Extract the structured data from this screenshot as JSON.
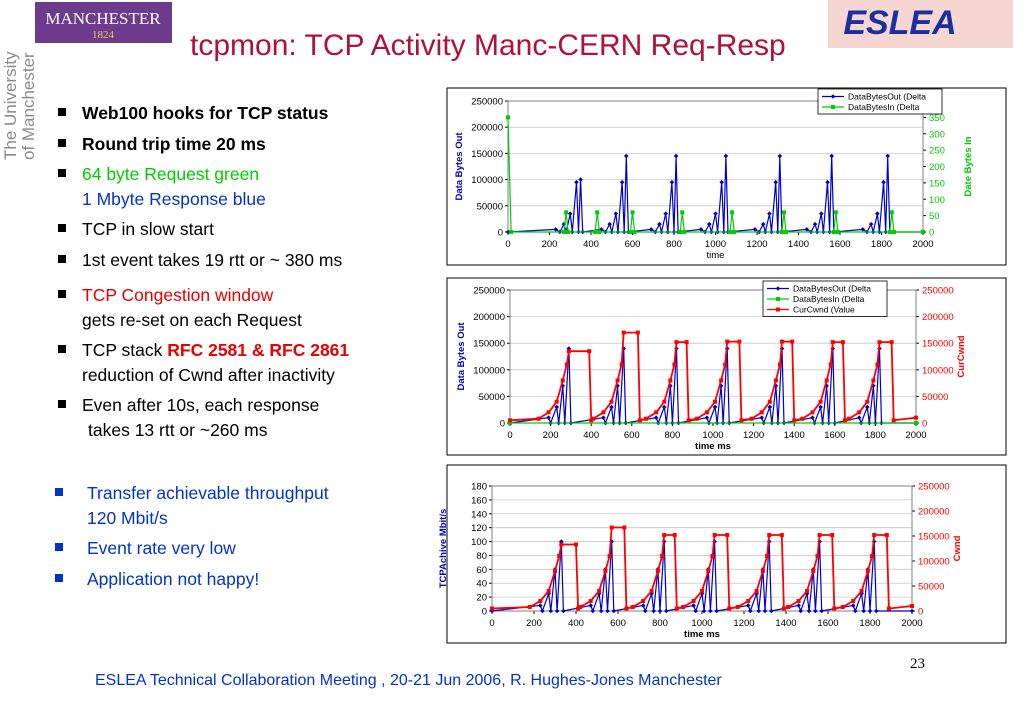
{
  "slide": {
    "logo": {
      "name": "MANCHESTER",
      "year": "1824"
    },
    "university": [
      "The University",
      "of Manchester"
    ],
    "eslea": "ESLEA",
    "title": "tcpmon: TCP Activity Manc-CERN Req-Resp",
    "bullets_top": [
      [
        [
          "Web100 hooks for TCP status"
        ]
      ],
      [
        [
          "Round trip time 20 ms"
        ]
      ],
      [
        [
          "64 byte Request green"
        ],
        [
          "1 Mbyte Response blue"
        ]
      ],
      [
        [
          "TCP in slow start"
        ]
      ],
      [
        [
          "1st event takes 19 rtt or ~ 380 ms"
        ]
      ],
      [
        [
          "TCP Congestion window"
        ],
        [
          "gets re-set on each Request"
        ]
      ],
      [
        [
          "TCP stack ",
          "RFC 2581 & RFC 2861"
        ],
        [
          "reduction of Cwnd after inactivity"
        ]
      ],
      [
        [
          "Even after 10s, each response"
        ],
        [
          "takes 13 rtt or ~260 ms"
        ]
      ]
    ],
    "bullets_bottom": [
      [
        [
          "Transfer achievable throughput"
        ],
        [
          "120 Mbit/s"
        ]
      ],
      [
        [
          "Event rate very low"
        ]
      ],
      [
        [
          "Application not happy!"
        ]
      ]
    ],
    "page_number": "23",
    "footer": "ESLEA Technical Collaboration Meeting , 20-21 Jun 2006,  R. Hughes-Jones  Manchester"
  },
  "chart_data": [
    {
      "type": "line",
      "x_label": "time",
      "y_label": "Data Bytes Out",
      "y2_label": "Date Bytes In",
      "grid": true,
      "legend": "upper right",
      "xlim": [
        0,
        2000
      ],
      "xticks": [
        0,
        200,
        400,
        600,
        800,
        1000,
        1200,
        1400,
        1600,
        1800,
        2000
      ],
      "ylim": [
        0,
        250000
      ],
      "yticks": [
        0,
        50000,
        100000,
        150000,
        200000,
        250000
      ],
      "y2lim": [
        0,
        400
      ],
      "y2ticks": [
        0,
        50,
        100,
        150,
        200,
        250,
        300,
        350
      ],
      "series": [
        {
          "name": "DataBytesOut (Delta",
          "color": "#0000cc",
          "marker": "diamond",
          "x": [
            0,
            230,
            250,
            270,
            280,
            300,
            310,
            330,
            340,
            350,
            360,
            450,
            470,
            490,
            500,
            520,
            530,
            550,
            560,
            570,
            580,
            690,
            710,
            730,
            740,
            760,
            770,
            790,
            800,
            810,
            820,
            930,
            950,
            970,
            980,
            1000,
            1010,
            1030,
            1040,
            1050,
            1060,
            1190,
            1210,
            1230,
            1240,
            1260,
            1270,
            1290,
            1300,
            1310,
            1320,
            1440,
            1460,
            1480,
            1490,
            1510,
            1520,
            1540,
            1550,
            1560,
            1570,
            1710,
            1730,
            1750,
            1760,
            1780,
            1790,
            1810,
            1820,
            1830,
            1840,
            2000
          ],
          "values": [
            0,
            5000,
            0,
            15000,
            0,
            35000,
            0,
            95000,
            0,
            100000,
            0,
            5000,
            0,
            15000,
            0,
            35000,
            0,
            95000,
            0,
            145000,
            0,
            5000,
            0,
            15000,
            0,
            35000,
            0,
            95000,
            0,
            145000,
            0,
            5000,
            0,
            15000,
            0,
            35000,
            0,
            95000,
            0,
            145000,
            0,
            5000,
            0,
            15000,
            0,
            35000,
            0,
            95000,
            0,
            145000,
            0,
            5000,
            0,
            15000,
            0,
            35000,
            0,
            95000,
            0,
            145000,
            0,
            5000,
            0,
            15000,
            0,
            35000,
            0,
            95000,
            0,
            145000,
            0,
            0
          ]
        },
        {
          "name": "DataBytesIn (Delta",
          "color": "#00cc00",
          "marker": "square",
          "axis": "y2",
          "x": [
            0,
            15,
            270,
            280,
            290,
            420,
            430,
            440,
            590,
            600,
            610,
            830,
            840,
            850,
            1070,
            1080,
            1090,
            1320,
            1330,
            1340,
            1570,
            1580,
            1590,
            1840,
            1850,
            1860,
            2000
          ],
          "values": [
            350,
            0,
            0,
            60,
            0,
            0,
            60,
            0,
            0,
            60,
            0,
            0,
            60,
            0,
            0,
            60,
            0,
            0,
            60,
            0,
            0,
            60,
            0,
            0,
            60,
            0,
            0
          ]
        }
      ]
    },
    {
      "type": "line",
      "x_label": "time ms",
      "y_label": "Data Bytes Out",
      "y2_label": "CurCwnd",
      "grid": true,
      "legend": "upper right",
      "xlim": [
        0,
        2000
      ],
      "xticks": [
        0,
        200,
        400,
        600,
        800,
        1000,
        1200,
        1400,
        1600,
        1800,
        2000
      ],
      "ylim": [
        0,
        250000
      ],
      "yticks": [
        0,
        50000,
        100000,
        150000,
        200000,
        250000
      ],
      "y2lim": [
        0,
        250000
      ],
      "y2ticks": [
        0,
        50000,
        100000,
        150000,
        200000,
        250000
      ],
      "series": [
        {
          "name": "DataBytesOut (Delta",
          "color": "#0000cc",
          "marker": "diamond",
          "x": [
            0,
            190,
            200,
            230,
            240,
            260,
            270,
            290,
            300,
            460,
            470,
            500,
            510,
            530,
            540,
            560,
            570,
            720,
            730,
            760,
            770,
            790,
            800,
            820,
            830,
            970,
            980,
            1010,
            1020,
            1040,
            1050,
            1070,
            1080,
            1240,
            1250,
            1280,
            1290,
            1310,
            1320,
            1340,
            1350,
            1490,
            1500,
            1530,
            1540,
            1560,
            1570,
            1590,
            1600,
            1720,
            1730,
            1760,
            1770,
            1790,
            1800,
            1820,
            1830,
            2000
          ],
          "values": [
            0,
            10000,
            0,
            30000,
            0,
            70000,
            0,
            140000,
            0,
            10000,
            0,
            30000,
            0,
            70000,
            0,
            140000,
            0,
            10000,
            0,
            30000,
            0,
            70000,
            0,
            140000,
            0,
            10000,
            0,
            30000,
            0,
            70000,
            0,
            140000,
            0,
            10000,
            0,
            30000,
            0,
            70000,
            0,
            140000,
            0,
            10000,
            0,
            30000,
            0,
            70000,
            0,
            140000,
            0,
            10000,
            0,
            30000,
            0,
            70000,
            0,
            140000,
            0,
            0
          ]
        },
        {
          "name": "DataBytesIn (Delta",
          "color": "#00cc00",
          "marker": "square",
          "x": [
            0,
            2000
          ],
          "values": [
            0,
            0
          ]
        },
        {
          "name": "CurCwnd (Value",
          "color": "#ff0000",
          "marker": "square",
          "axis": "y2",
          "x": [
            0,
            140,
            190,
            230,
            260,
            280,
            290,
            390,
            400,
            410,
            460,
            500,
            530,
            550,
            560,
            630,
            640,
            670,
            720,
            760,
            790,
            810,
            820,
            870,
            880,
            920,
            970,
            1010,
            1040,
            1060,
            1070,
            1130,
            1140,
            1190,
            1240,
            1280,
            1310,
            1330,
            1340,
            1390,
            1400,
            1440,
            1490,
            1530,
            1560,
            1580,
            1590,
            1640,
            1650,
            1670,
            1720,
            1760,
            1790,
            1810,
            1820,
            1880,
            1890,
            2000
          ],
          "values": [
            5000,
            8000,
            20000,
            40000,
            80000,
            110000,
            135000,
            135000,
            5000,
            8000,
            20000,
            40000,
            80000,
            110000,
            170000,
            170000,
            5000,
            8000,
            20000,
            40000,
            80000,
            110000,
            152000,
            152000,
            5000,
            8000,
            20000,
            40000,
            80000,
            110000,
            153000,
            153000,
            5000,
            8000,
            20000,
            40000,
            80000,
            110000,
            153000,
            153000,
            5000,
            8000,
            20000,
            40000,
            80000,
            110000,
            152000,
            152000,
            5000,
            8000,
            20000,
            40000,
            80000,
            110000,
            152000,
            152000,
            5000,
            10000
          ]
        }
      ]
    },
    {
      "type": "line",
      "x_label": "time ms",
      "y_label": "TCPAchive Mbit/s",
      "y2_label": "Cwnd",
      "grid": true,
      "xlim": [
        0,
        2000
      ],
      "xticks": [
        0,
        200,
        400,
        600,
        800,
        1000,
        1200,
        1400,
        1600,
        1800,
        2000
      ],
      "ylim": [
        0,
        180
      ],
      "yticks": [
        0,
        20,
        40,
        60,
        80,
        100,
        120,
        140,
        160,
        180
      ],
      "y2lim": [
        0,
        250000
      ],
      "y2ticks": [
        0,
        50000,
        100000,
        150000,
        200000,
        250000
      ],
      "series": [
        {
          "name": "TCPAchive",
          "color": "#0000cc",
          "marker": "diamond",
          "x": [
            0,
            230,
            240,
            270,
            280,
            300,
            310,
            330,
            340,
            470,
            480,
            510,
            520,
            540,
            550,
            570,
            580,
            720,
            730,
            760,
            770,
            790,
            800,
            820,
            830,
            960,
            970,
            1000,
            1010,
            1030,
            1040,
            1060,
            1070,
            1220,
            1230,
            1260,
            1270,
            1290,
            1300,
            1320,
            1330,
            1460,
            1470,
            1500,
            1510,
            1530,
            1540,
            1560,
            1570,
            1720,
            1730,
            1760,
            1770,
            1790,
            1800,
            1820,
            1830,
            2000
          ],
          "values": [
            0,
            8,
            0,
            25,
            0,
            60,
            0,
            100,
            0,
            8,
            0,
            25,
            0,
            60,
            0,
            100,
            0,
            8,
            0,
            25,
            0,
            60,
            0,
            100,
            0,
            8,
            0,
            25,
            0,
            60,
            0,
            100,
            0,
            8,
            0,
            25,
            0,
            60,
            0,
            100,
            0,
            8,
            0,
            25,
            0,
            60,
            0,
            100,
            0,
            8,
            0,
            25,
            0,
            60,
            0,
            100,
            0,
            0
          ]
        },
        {
          "name": "Cwnd",
          "color": "#ff0000",
          "marker": "square",
          "axis": "y2",
          "x": [
            0,
            180,
            230,
            270,
            300,
            320,
            330,
            400,
            410,
            420,
            470,
            510,
            540,
            560,
            570,
            630,
            640,
            670,
            720,
            760,
            790,
            810,
            820,
            870,
            880,
            910,
            960,
            1000,
            1030,
            1050,
            1060,
            1120,
            1130,
            1170,
            1220,
            1260,
            1290,
            1310,
            1320,
            1380,
            1390,
            1410,
            1460,
            1500,
            1530,
            1550,
            1560,
            1620,
            1630,
            1670,
            1720,
            1760,
            1790,
            1810,
            1820,
            1880,
            1890,
            2000
          ],
          "values": [
            5000,
            8000,
            20000,
            40000,
            80000,
            110000,
            133000,
            133000,
            5000,
            8000,
            20000,
            40000,
            80000,
            110000,
            167000,
            167000,
            5000,
            8000,
            20000,
            40000,
            80000,
            110000,
            152000,
            152000,
            5000,
            8000,
            20000,
            40000,
            80000,
            110000,
            152000,
            152000,
            5000,
            8000,
            20000,
            40000,
            80000,
            110000,
            152000,
            152000,
            5000,
            8000,
            20000,
            40000,
            80000,
            110000,
            152000,
            152000,
            5000,
            8000,
            20000,
            40000,
            80000,
            110000,
            152000,
            152000,
            5000,
            10000
          ]
        }
      ]
    }
  ]
}
